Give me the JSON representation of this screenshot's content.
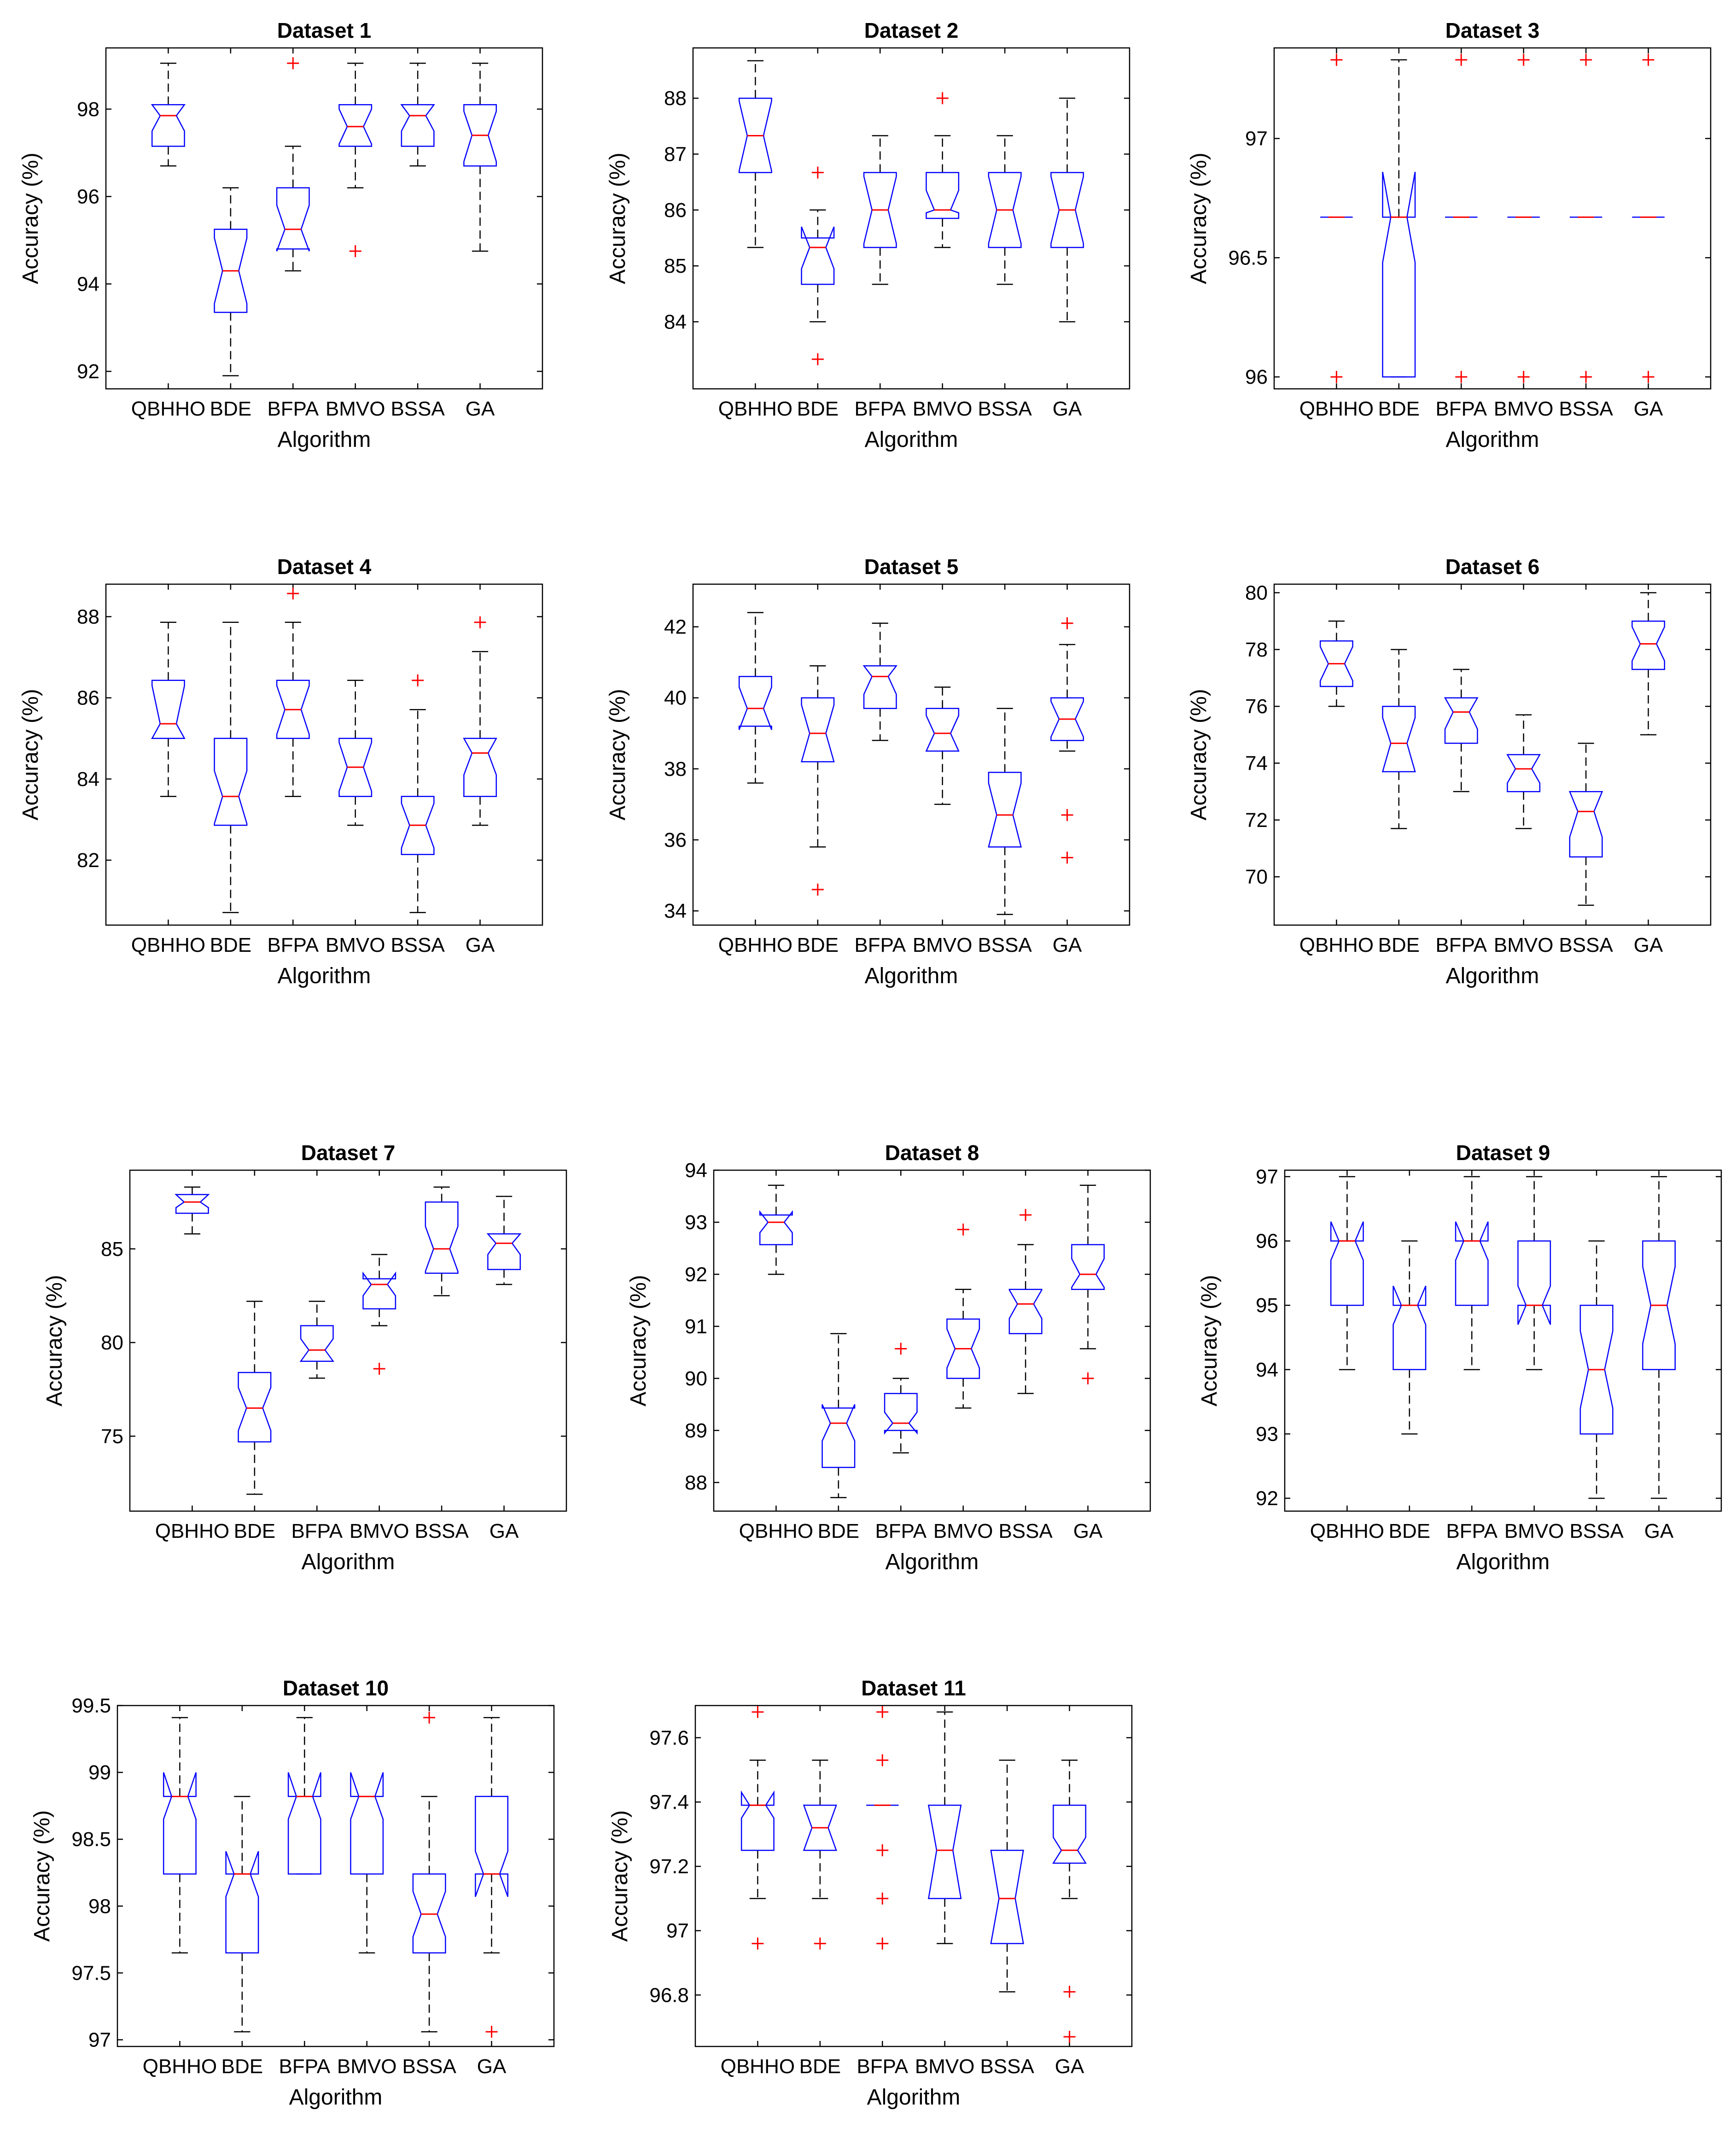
{
  "style": {
    "box_color": "#0000ff",
    "median_color": "#ff0000",
    "outlier_color": "#ff0000",
    "whisker_color": "#000000",
    "axes_color": "#000000"
  },
  "chart_data": [
    {
      "type": "boxplot",
      "title": "Dataset 1",
      "xlabel": "Algorithm",
      "ylabel": "Accuracy (%)",
      "categories": [
        "QBHHO",
        "BDE",
        "BFPA",
        "BMVO",
        "BSSA",
        "GA"
      ],
      "ylim": [
        91.6,
        99.4
      ],
      "yticks": [
        92,
        94,
        96,
        98
      ],
      "notch": true,
      "grid": false,
      "boxes": [
        {
          "lw": 96.7,
          "q1": 97.15,
          "med": 97.85,
          "q3": 98.1,
          "uw": 99.05,
          "out": [],
          "nlo": 97.5,
          "nhi": 98.1
        },
        {
          "lw": 91.9,
          "q1": 93.35,
          "med": 94.3,
          "q3": 95.25,
          "uw": 96.2,
          "out": [],
          "nlo": 93.55,
          "nhi": 95.05
        },
        {
          "lw": 94.3,
          "q1": 94.8,
          "med": 95.25,
          "q3": 96.2,
          "uw": 97.15,
          "out": [
            99.05
          ],
          "nlo": 94.75,
          "nhi": 95.8
        },
        {
          "lw": 96.2,
          "q1": 97.15,
          "med": 97.6,
          "q3": 98.1,
          "uw": 99.05,
          "out": [
            94.75
          ],
          "nlo": 97.2,
          "nhi": 98.0
        },
        {
          "lw": 96.7,
          "q1": 97.15,
          "med": 97.85,
          "q3": 98.1,
          "uw": 99.05,
          "out": [],
          "nlo": 97.5,
          "nhi": 98.1
        },
        {
          "lw": 94.75,
          "q1": 96.7,
          "med": 97.4,
          "q3": 98.1,
          "uw": 99.05,
          "out": [],
          "nlo": 96.8,
          "nhi": 97.95
        }
      ]
    },
    {
      "type": "boxplot",
      "title": "Dataset 2",
      "xlabel": "Algorithm",
      "ylabel": "Accuracy (%)",
      "categories": [
        "QBHHO",
        "BDE",
        "BFPA",
        "BMVO",
        "BSSA",
        "GA"
      ],
      "ylim": [
        82.8,
        88.9
      ],
      "yticks": [
        84,
        85,
        86,
        87,
        88
      ],
      "notch": true,
      "grid": false,
      "boxes": [
        {
          "lw": 85.33,
          "q1": 86.67,
          "med": 87.33,
          "q3": 88.0,
          "uw": 88.67,
          "out": [],
          "nlo": 86.7,
          "nhi": 87.95
        },
        {
          "lw": 84.0,
          "q1": 84.67,
          "med": 85.33,
          "q3": 85.5,
          "uw": 86.0,
          "out": [
            86.67,
            83.33
          ],
          "nlo": 84.95,
          "nhi": 85.7
        },
        {
          "lw": 84.67,
          "q1": 85.33,
          "med": 86.0,
          "q3": 86.67,
          "uw": 87.33,
          "out": [],
          "nlo": 85.4,
          "nhi": 86.6
        },
        {
          "lw": 85.33,
          "q1": 85.85,
          "med": 86.0,
          "q3": 86.67,
          "uw": 87.33,
          "out": [
            88.0
          ],
          "nlo": 85.95,
          "nhi": 86.35
        },
        {
          "lw": 84.67,
          "q1": 85.33,
          "med": 86.0,
          "q3": 86.67,
          "uw": 87.33,
          "out": [],
          "nlo": 85.4,
          "nhi": 86.6
        },
        {
          "lw": 84.0,
          "q1": 85.33,
          "med": 86.0,
          "q3": 86.67,
          "uw": 88.0,
          "out": [],
          "nlo": 85.4,
          "nhi": 86.6
        }
      ]
    },
    {
      "type": "boxplot",
      "title": "Dataset 3",
      "xlabel": "Algorithm",
      "ylabel": "Accuracy (%)",
      "categories": [
        "QBHHO",
        "BDE",
        "BFPA",
        "BMVO",
        "BSSA",
        "GA"
      ],
      "ylim": [
        95.95,
        97.38
      ],
      "yticks": [
        96,
        96.5,
        97
      ],
      "notch": true,
      "grid": false,
      "boxes": [
        {
          "lw": 96.67,
          "q1": 96.67,
          "med": 96.67,
          "q3": 96.67,
          "uw": 96.67,
          "out": [
            97.33,
            96.0
          ],
          "nlo": 96.67,
          "nhi": 96.67
        },
        {
          "lw": 96.0,
          "q1": 96.0,
          "med": 96.67,
          "q3": 96.67,
          "uw": 97.33,
          "out": [],
          "nlo": 96.48,
          "nhi": 96.86
        },
        {
          "lw": 96.67,
          "q1": 96.67,
          "med": 96.67,
          "q3": 96.67,
          "uw": 96.67,
          "out": [
            97.33,
            96.0
          ],
          "nlo": 96.67,
          "nhi": 96.67
        },
        {
          "lw": 96.67,
          "q1": 96.67,
          "med": 96.67,
          "q3": 96.67,
          "uw": 96.67,
          "out": [
            97.33,
            96.0
          ],
          "nlo": 96.67,
          "nhi": 96.67
        },
        {
          "lw": 96.67,
          "q1": 96.67,
          "med": 96.67,
          "q3": 96.67,
          "uw": 96.67,
          "out": [
            97.33,
            96.0
          ],
          "nlo": 96.67,
          "nhi": 96.67
        },
        {
          "lw": 96.67,
          "q1": 96.67,
          "med": 96.67,
          "q3": 96.67,
          "uw": 96.67,
          "out": [
            97.33,
            96.0
          ],
          "nlo": 96.67,
          "nhi": 96.67
        }
      ]
    },
    {
      "type": "boxplot",
      "title": "Dataset 4",
      "xlabel": "Algorithm",
      "ylabel": "Accuracy (%)",
      "categories": [
        "QBHHO",
        "BDE",
        "BFPA",
        "BMVO",
        "BSSA",
        "GA"
      ],
      "ylim": [
        80.4,
        88.8
      ],
      "yticks": [
        82,
        84,
        86,
        88
      ],
      "notch": true,
      "grid": false,
      "boxes": [
        {
          "lw": 83.57,
          "q1": 85.0,
          "med": 85.36,
          "q3": 86.43,
          "uw": 87.86,
          "out": [],
          "nlo": 85.0,
          "nhi": 86.3
        },
        {
          "lw": 80.71,
          "q1": 82.86,
          "med": 83.57,
          "q3": 85.0,
          "uw": 87.86,
          "out": [],
          "nlo": 82.9,
          "nhi": 84.2
        },
        {
          "lw": 83.57,
          "q1": 85.0,
          "med": 85.71,
          "q3": 86.43,
          "uw": 87.86,
          "out": [
            88.57
          ],
          "nlo": 85.1,
          "nhi": 86.3
        },
        {
          "lw": 82.86,
          "q1": 83.57,
          "med": 84.29,
          "q3": 85.0,
          "uw": 86.43,
          "out": [],
          "nlo": 83.7,
          "nhi": 84.9
        },
        {
          "lw": 80.71,
          "q1": 82.14,
          "med": 82.86,
          "q3": 83.57,
          "uw": 85.71,
          "out": [
            86.43
          ],
          "nlo": 82.3,
          "nhi": 83.4
        },
        {
          "lw": 82.86,
          "q1": 83.57,
          "med": 84.64,
          "q3": 85.0,
          "uw": 87.14,
          "out": [
            87.86
          ],
          "nlo": 84.1,
          "nhi": 85.0
        }
      ]
    },
    {
      "type": "boxplot",
      "title": "Dataset 5",
      "xlabel": "Algorithm",
      "ylabel": "Accuracy (%)",
      "categories": [
        "QBHHO",
        "BDE",
        "BFPA",
        "BMVO",
        "BSSA",
        "GA"
      ],
      "ylim": [
        33.6,
        43.2
      ],
      "yticks": [
        34,
        36,
        38,
        40,
        42
      ],
      "notch": true,
      "grid": false,
      "boxes": [
        {
          "lw": 37.6,
          "q1": 39.2,
          "med": 39.7,
          "q3": 40.6,
          "uw": 42.4,
          "out": [],
          "nlo": 39.1,
          "nhi": 40.3
        },
        {
          "lw": 35.8,
          "q1": 38.2,
          "med": 39.0,
          "q3": 40.0,
          "uw": 40.9,
          "out": [
            34.6
          ],
          "nlo": 38.2,
          "nhi": 39.8
        },
        {
          "lw": 38.8,
          "q1": 39.7,
          "med": 40.6,
          "q3": 40.9,
          "uw": 42.1,
          "out": [],
          "nlo": 40.1,
          "nhi": 40.9
        },
        {
          "lw": 37.0,
          "q1": 38.5,
          "med": 39.0,
          "q3": 39.7,
          "uw": 40.3,
          "out": [],
          "nlo": 38.5,
          "nhi": 39.5
        },
        {
          "lw": 33.9,
          "q1": 35.8,
          "med": 36.7,
          "q3": 37.9,
          "uw": 39.7,
          "out": [],
          "nlo": 35.8,
          "nhi": 37.6
        },
        {
          "lw": 38.5,
          "q1": 38.8,
          "med": 39.4,
          "q3": 40.0,
          "uw": 41.5,
          "out": [
            42.1,
            36.7,
            35.5
          ],
          "nlo": 38.9,
          "nhi": 39.9
        }
      ]
    },
    {
      "type": "boxplot",
      "title": "Dataset 6",
      "xlabel": "Algorithm",
      "ylabel": "Accuracy (%)",
      "categories": [
        "QBHHO",
        "BDE",
        "BFPA",
        "BMVO",
        "BSSA",
        "GA"
      ],
      "ylim": [
        68.3,
        80.3
      ],
      "yticks": [
        70,
        72,
        74,
        76,
        78,
        80
      ],
      "notch": true,
      "grid": false,
      "boxes": [
        {
          "lw": 76.0,
          "q1": 76.7,
          "med": 77.5,
          "q3": 78.3,
          "uw": 79.0,
          "out": [],
          "nlo": 76.9,
          "nhi": 78.1
        },
        {
          "lw": 71.7,
          "q1": 73.7,
          "med": 74.7,
          "q3": 76.0,
          "uw": 78.0,
          "out": [],
          "nlo": 73.7,
          "nhi": 75.6
        },
        {
          "lw": 73.0,
          "q1": 74.7,
          "med": 75.8,
          "q3": 76.3,
          "uw": 77.3,
          "out": [],
          "nlo": 75.2,
          "nhi": 76.3
        },
        {
          "lw": 71.7,
          "q1": 73.0,
          "med": 73.8,
          "q3": 74.3,
          "uw": 75.7,
          "out": [],
          "nlo": 73.3,
          "nhi": 74.3
        },
        {
          "lw": 69.0,
          "q1": 70.7,
          "med": 72.3,
          "q3": 73.0,
          "uw": 74.7,
          "out": [],
          "nlo": 71.4,
          "nhi": 73.0
        },
        {
          "lw": 75.0,
          "q1": 77.3,
          "med": 78.2,
          "q3": 79.0,
          "uw": 80.0,
          "out": [],
          "nlo": 77.6,
          "nhi": 78.8
        }
      ]
    },
    {
      "type": "boxplot",
      "title": "Dataset 7",
      "xlabel": "Algorithm",
      "ylabel": "Accuracy (%)",
      "categories": [
        "QBHHO",
        "BDE",
        "BFPA",
        "BMVO",
        "BSSA",
        "GA"
      ],
      "ylim": [
        71.0,
        89.2
      ],
      "yticks": [
        75,
        80,
        85
      ],
      "notch": true,
      "grid": false,
      "boxes": [
        {
          "lw": 85.8,
          "q1": 86.9,
          "med": 87.5,
          "q3": 87.9,
          "uw": 88.3,
          "out": [],
          "nlo": 87.2,
          "nhi": 87.9
        },
        {
          "lw": 71.9,
          "q1": 74.7,
          "med": 76.5,
          "q3": 78.4,
          "uw": 82.2,
          "out": [],
          "nlo": 75.3,
          "nhi": 77.6
        },
        {
          "lw": 78.1,
          "q1": 79.0,
          "med": 79.6,
          "q3": 80.9,
          "uw": 82.2,
          "out": [],
          "nlo": 79.0,
          "nhi": 80.2
        },
        {
          "lw": 80.9,
          "q1": 81.8,
          "med": 83.1,
          "q3": 83.4,
          "uw": 84.7,
          "out": [
            78.6
          ],
          "nlo": 82.5,
          "nhi": 83.7
        },
        {
          "lw": 82.5,
          "q1": 83.7,
          "med": 85.0,
          "q3": 87.5,
          "uw": 88.3,
          "out": [],
          "nlo": 83.8,
          "nhi": 86.2
        },
        {
          "lw": 83.1,
          "q1": 83.9,
          "med": 85.3,
          "q3": 85.8,
          "uw": 87.8,
          "out": [],
          "nlo": 84.7,
          "nhi": 85.8
        }
      ]
    },
    {
      "type": "boxplot",
      "title": "Dataset 8",
      "xlabel": "Algorithm",
      "ylabel": "Accuracy (%)",
      "categories": [
        "QBHHO",
        "BDE",
        "BFPA",
        "BMVO",
        "BSSA",
        "GA"
      ],
      "ylim": [
        87.45,
        94.0
      ],
      "yticks": [
        88,
        89,
        90,
        91,
        92,
        93,
        94
      ],
      "notch": true,
      "grid": false,
      "boxes": [
        {
          "lw": 92.0,
          "q1": 92.57,
          "med": 93.0,
          "q3": 93.14,
          "uw": 93.71,
          "out": [],
          "nlo": 92.8,
          "nhi": 93.2
        },
        {
          "lw": 87.71,
          "q1": 88.29,
          "med": 89.14,
          "q3": 89.43,
          "uw": 90.86,
          "out": [],
          "nlo": 88.8,
          "nhi": 89.5
        },
        {
          "lw": 88.57,
          "q1": 89.0,
          "med": 89.14,
          "q3": 89.71,
          "uw": 90.0,
          "out": [
            90.57
          ],
          "nlo": 88.95,
          "nhi": 89.35
        },
        {
          "lw": 89.43,
          "q1": 90.0,
          "med": 90.57,
          "q3": 91.14,
          "uw": 91.71,
          "out": [
            92.86
          ],
          "nlo": 90.2,
          "nhi": 90.95
        },
        {
          "lw": 89.71,
          "q1": 90.86,
          "med": 91.43,
          "q3": 91.71,
          "uw": 92.57,
          "out": [
            93.14
          ],
          "nlo": 91.15,
          "nhi": 91.7
        },
        {
          "lw": 90.57,
          "q1": 91.71,
          "med": 92.0,
          "q3": 92.57,
          "uw": 93.71,
          "out": [
            90.0
          ],
          "nlo": 91.75,
          "nhi": 92.3
        }
      ]
    },
    {
      "type": "boxplot",
      "title": "Dataset 9",
      "xlabel": "Algorithm",
      "ylabel": "Accuracy (%)",
      "categories": [
        "QBHHO",
        "BDE",
        "BFPA",
        "BMVO",
        "BSSA",
        "GA"
      ],
      "ylim": [
        91.8,
        97.1
      ],
      "yticks": [
        92,
        93,
        94,
        95,
        96,
        97
      ],
      "notch": true,
      "grid": false,
      "boxes": [
        {
          "lw": 94.0,
          "q1": 95.0,
          "med": 96.0,
          "q3": 96.0,
          "uw": 97.0,
          "out": [],
          "nlo": 95.7,
          "nhi": 96.3
        },
        {
          "lw": 93.0,
          "q1": 94.0,
          "med": 95.0,
          "q3": 95.0,
          "uw": 96.0,
          "out": [],
          "nlo": 94.7,
          "nhi": 95.3
        },
        {
          "lw": 94.0,
          "q1": 95.0,
          "med": 96.0,
          "q3": 96.0,
          "uw": 97.0,
          "out": [],
          "nlo": 95.7,
          "nhi": 96.3
        },
        {
          "lw": 94.0,
          "q1": 95.0,
          "med": 95.0,
          "q3": 96.0,
          "uw": 97.0,
          "out": [],
          "nlo": 94.7,
          "nhi": 95.3
        },
        {
          "lw": 92.0,
          "q1": 93.0,
          "med": 94.0,
          "q3": 95.0,
          "uw": 96.0,
          "out": [],
          "nlo": 93.4,
          "nhi": 94.6
        },
        {
          "lw": 92.0,
          "q1": 94.0,
          "med": 95.0,
          "q3": 96.0,
          "uw": 97.0,
          "out": [],
          "nlo": 94.4,
          "nhi": 95.6
        }
      ]
    },
    {
      "type": "boxplot",
      "title": "Dataset 10",
      "xlabel": "Algorithm",
      "ylabel": "Accuracy (%)",
      "categories": [
        "QBHHO",
        "BDE",
        "BFPA",
        "BMVO",
        "BSSA",
        "GA"
      ],
      "ylim": [
        96.95,
        99.5
      ],
      "yticks": [
        97,
        97.5,
        98,
        98.5,
        99,
        99.5
      ],
      "notch": true,
      "grid": false,
      "boxes": [
        {
          "lw": 97.65,
          "q1": 98.24,
          "med": 98.82,
          "q3": 98.82,
          "uw": 99.41,
          "out": [],
          "nlo": 98.65,
          "nhi": 99.0
        },
        {
          "lw": 97.06,
          "q1": 97.65,
          "med": 98.24,
          "q3": 98.24,
          "uw": 98.82,
          "out": [],
          "nlo": 98.07,
          "nhi": 98.41
        },
        {
          "lw": 98.24,
          "q1": 98.24,
          "med": 98.82,
          "q3": 98.82,
          "uw": 99.41,
          "out": [],
          "nlo": 98.65,
          "nhi": 99.0
        },
        {
          "lw": 97.65,
          "q1": 98.24,
          "med": 98.82,
          "q3": 98.82,
          "uw": 98.82,
          "out": [],
          "nlo": 98.65,
          "nhi": 99.0
        },
        {
          "lw": 97.06,
          "q1": 97.65,
          "med": 97.94,
          "q3": 98.24,
          "uw": 98.82,
          "out": [
            99.41
          ],
          "nlo": 97.77,
          "nhi": 98.11
        },
        {
          "lw": 97.65,
          "q1": 98.24,
          "med": 98.24,
          "q3": 98.82,
          "uw": 99.41,
          "out": [
            97.06
          ],
          "nlo": 98.07,
          "nhi": 98.41
        }
      ]
    },
    {
      "type": "boxplot",
      "title": "Dataset 11",
      "xlabel": "Algorithm",
      "ylabel": "Accuracy (%)",
      "categories": [
        "QBHHO",
        "BDE",
        "BFPA",
        "BMVO",
        "BSSA",
        "GA"
      ],
      "ylim": [
        96.64,
        97.7
      ],
      "yticks": [
        96.8,
        97,
        97.2,
        97.4,
        97.6
      ],
      "notch": true,
      "grid": false,
      "boxes": [
        {
          "lw": 97.1,
          "q1": 97.25,
          "med": 97.39,
          "q3": 97.39,
          "uw": 97.53,
          "out": [
            97.68,
            96.96
          ],
          "nlo": 97.35,
          "nhi": 97.43
        },
        {
          "lw": 97.1,
          "q1": 97.25,
          "med": 97.32,
          "q3": 97.39,
          "uw": 97.53,
          "out": [
            96.96
          ],
          "nlo": 97.25,
          "nhi": 97.39
        },
        {
          "lw": 97.39,
          "q1": 97.39,
          "med": 97.39,
          "q3": 97.39,
          "uw": 97.39,
          "out": [
            97.68,
            97.53,
            97.25,
            97.1,
            96.96
          ],
          "nlo": 97.39,
          "nhi": 97.39
        },
        {
          "lw": 96.96,
          "q1": 97.1,
          "med": 97.25,
          "q3": 97.39,
          "uw": 97.68,
          "out": [],
          "nlo": 97.1,
          "nhi": 97.39
        },
        {
          "lw": 96.81,
          "q1": 96.96,
          "med": 97.1,
          "q3": 97.25,
          "uw": 97.53,
          "out": [],
          "nlo": 96.96,
          "nhi": 97.25
        },
        {
          "lw": 97.1,
          "q1": 97.21,
          "med": 97.25,
          "q3": 97.39,
          "uw": 97.53,
          "out": [
            96.81,
            96.67
          ],
          "nlo": 97.21,
          "nhi": 97.29
        }
      ]
    }
  ]
}
